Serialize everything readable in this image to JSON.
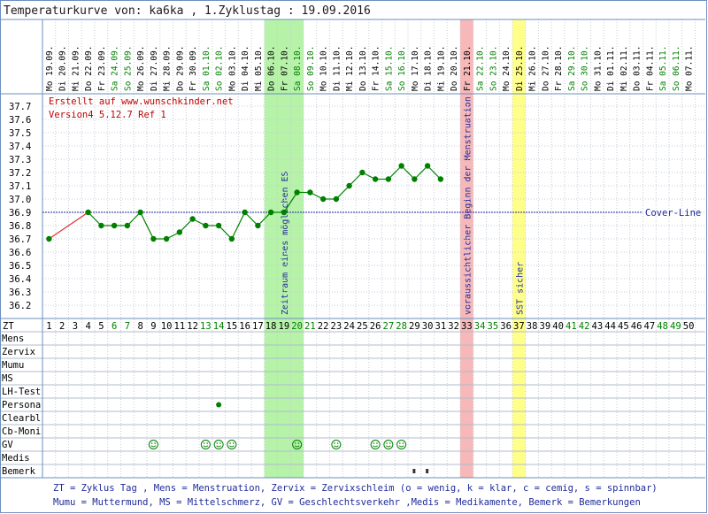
{
  "title": "Temperaturkurve von: ka6ka , 1.Zyklustag : 19.09.2016",
  "credit_line1": "Erstellt auf www.wunschkinder.net",
  "credit_line2": "Version4 5.12.7 Ref 1",
  "coverline_label": "Cover-Line",
  "zt_label": "ZT",
  "row_labels": [
    "Mens",
    "Zervix",
    "Mumu",
    "MS",
    "LH-Test",
    "Persona",
    "Clearbl",
    "Cb-Moni",
    "GV",
    "Medis",
    "Bemerk"
  ],
  "legend_line1": "ZT = Zyklus Tag , Mens = Menstruation, Zervix = Zervixschleim (o = wenig, k = klar, c = cemig, s = spinnbar)",
  "legend_line2": "Mumu = Muttermund, MS = Mittelschmerz, GV = Geschlechtsverkehr ,Medis = Medikamente, Bemerk = Bemerkungen",
  "colors": {
    "frame": "#6b8fbf",
    "temp_line": "#008000",
    "first_segment": "#e03030",
    "coverline": "#1f2a9a",
    "fertile_band": "#b6f2a8",
    "menses_band": "#f6b8b8",
    "sst_band": "#ffff8a",
    "weekend_text": "#008000",
    "weekday_text": "#000000",
    "credit_text": "#c00000",
    "legend_text": "#1f2a9a"
  },
  "chart_data": {
    "type": "line",
    "x_label": "ZT",
    "y_ticks": [
      "37.7",
      "37.6",
      "37.5",
      "37.4",
      "37.3",
      "37.2",
      "37.1",
      "37.0",
      "36.9",
      "36.8",
      "36.7",
      "36.6",
      "36.5",
      "36.4",
      "36.3",
      "36.2"
    ],
    "ylim": [
      36.1,
      37.8
    ],
    "coverline": 36.9,
    "dates": [
      "Mo 19.09.",
      "Di 20.09.",
      "Mi 21.09.",
      "Do 22.09.",
      "Fr 23.09.",
      "Sa 24.09.",
      "So 25.09.",
      "Mo 26.09.",
      "Di 27.09.",
      "Mi 28.09.",
      "Do 29.09.",
      "Fr 30.09.",
      "Sa 01.10.",
      "So 02.10.",
      "Mo 03.10.",
      "Di 04.10.",
      "Mi 05.10.",
      "Do 06.10.",
      "Fr 07.10.",
      "Sa 08.10.",
      "So 09.10.",
      "Mo 10.10.",
      "Di 11.10.",
      "Mi 12.10.",
      "Do 13.10.",
      "Fr 14.10.",
      "Sa 15.10.",
      "So 16.10.",
      "Mo 17.10.",
      "Di 18.10.",
      "Mi 19.10.",
      "Do 20.10.",
      "Fr 21.10.",
      "Sa 22.10.",
      "So 23.10.",
      "Mo 24.10.",
      "Di 25.10.",
      "Mi 26.10.",
      "Do 27.10.",
      "Fr 28.10.",
      "Sa 29.10.",
      "So 30.10.",
      "Mo 31.10.",
      "Di 01.11.",
      "Mi 02.11.",
      "Do 03.11.",
      "Fr 04.11.",
      "Sa 05.11.",
      "So 06.11.",
      "Mo 07.11."
    ],
    "cycle_days": [
      "1",
      "2",
      "3",
      "4",
      "5",
      "6",
      "7",
      "8",
      "9",
      "10",
      "11",
      "12",
      "13",
      "14",
      "15",
      "16",
      "17",
      "18",
      "19",
      "20",
      "21",
      "22",
      "23",
      "24",
      "25",
      "26",
      "27",
      "28",
      "29",
      "30",
      "31",
      "32",
      "33",
      "34",
      "35",
      "36",
      "37",
      "38",
      "39",
      "40",
      "41",
      "42",
      "43",
      "44",
      "45",
      "46",
      "47",
      "48",
      "49",
      "50"
    ],
    "temperatures": [
      36.7,
      null,
      null,
      36.9,
      36.8,
      36.8,
      36.8,
      36.9,
      36.7,
      36.7,
      36.75,
      36.85,
      36.8,
      36.8,
      36.7,
      36.9,
      36.8,
      36.9,
      36.9,
      37.05,
      37.05,
      37.0,
      37.0,
      37.1,
      37.2,
      37.15,
      37.15,
      37.25,
      37.15,
      37.25,
      37.15
    ],
    "bands": [
      {
        "start_day": 18,
        "end_day": 20,
        "label": "Zeitraum eines möglichen ES"
      },
      {
        "start_day": 33,
        "end_day": 33,
        "label": "voraussichtlicher Beginn der Menstruation"
      },
      {
        "start_day": 37,
        "end_day": 37,
        "label": "SST sicher"
      }
    ],
    "persona_days": [
      14
    ],
    "gv_days": [
      9,
      13,
      14,
      15,
      20,
      23,
      26,
      27,
      28
    ],
    "bemerk_days": [
      29,
      30
    ]
  }
}
